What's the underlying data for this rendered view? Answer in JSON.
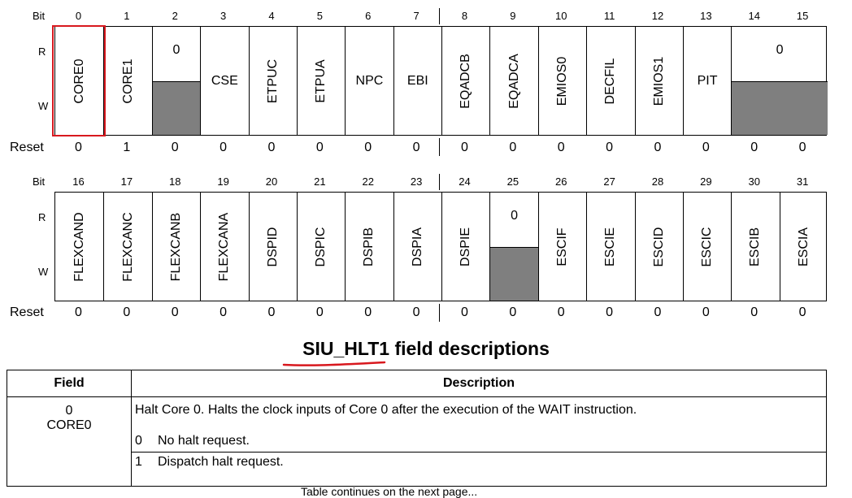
{
  "register": {
    "bit_label": "Bit",
    "r_label": "R",
    "w_label": "W",
    "reset_label": "Reset",
    "row1": {
      "bits": [
        "0",
        "1",
        "2",
        "3",
        "4",
        "5",
        "6",
        "7",
        "8",
        "9",
        "10",
        "11",
        "12",
        "13",
        "14",
        "15"
      ],
      "resets": [
        "0",
        "1",
        "0",
        "0",
        "0",
        "0",
        "0",
        "0",
        "0",
        "0",
        "0",
        "0",
        "0",
        "0",
        "0",
        "0"
      ],
      "fields": [
        {
          "name": "CORE0",
          "span": 1,
          "vertical": true,
          "reserved": false
        },
        {
          "name": "CORE1",
          "span": 1,
          "vertical": true,
          "reserved": false
        },
        {
          "name": "0",
          "span": 1,
          "vertical": false,
          "reserved": true
        },
        {
          "name": "CSE",
          "span": 1,
          "vertical": false,
          "reserved": false
        },
        {
          "name": "ETPUC",
          "span": 1,
          "vertical": true,
          "reserved": false
        },
        {
          "name": "ETPUA",
          "span": 1,
          "vertical": true,
          "reserved": false
        },
        {
          "name": "NPC",
          "span": 1,
          "vertical": false,
          "reserved": false
        },
        {
          "name": "EBI",
          "span": 1,
          "vertical": false,
          "reserved": false
        },
        {
          "name": "EQADCB",
          "span": 1,
          "vertical": true,
          "reserved": false
        },
        {
          "name": "EQADCA",
          "span": 1,
          "vertical": true,
          "reserved": false
        },
        {
          "name": "EMIOS0",
          "span": 1,
          "vertical": true,
          "reserved": false
        },
        {
          "name": "DECFIL",
          "span": 1,
          "vertical": true,
          "reserved": false
        },
        {
          "name": "EMIOS1",
          "span": 1,
          "vertical": true,
          "reserved": false
        },
        {
          "name": "PIT",
          "span": 1,
          "vertical": false,
          "reserved": false
        },
        {
          "name": "0",
          "span": 2,
          "vertical": false,
          "reserved": true
        }
      ]
    },
    "row2": {
      "bits": [
        "16",
        "17",
        "18",
        "19",
        "20",
        "21",
        "22",
        "23",
        "24",
        "25",
        "26",
        "27",
        "28",
        "29",
        "30",
        "31"
      ],
      "resets": [
        "0",
        "0",
        "0",
        "0",
        "0",
        "0",
        "0",
        "0",
        "0",
        "0",
        "0",
        "0",
        "0",
        "0",
        "0",
        "0"
      ],
      "fields": [
        {
          "name": "FLEXCAND",
          "span": 1,
          "vertical": true,
          "reserved": false
        },
        {
          "name": "FLEXCANC",
          "span": 1,
          "vertical": true,
          "reserved": false
        },
        {
          "name": "FLEXCANB",
          "span": 1,
          "vertical": true,
          "reserved": false
        },
        {
          "name": "FLEXCANA",
          "span": 1,
          "vertical": true,
          "reserved": false
        },
        {
          "name": "DSPID",
          "span": 1,
          "vertical": true,
          "reserved": false
        },
        {
          "name": "DSPIC",
          "span": 1,
          "vertical": true,
          "reserved": false
        },
        {
          "name": "DSPIB",
          "span": 1,
          "vertical": true,
          "reserved": false
        },
        {
          "name": "DSPIA",
          "span": 1,
          "vertical": true,
          "reserved": false
        },
        {
          "name": "DSPIE",
          "span": 1,
          "vertical": true,
          "reserved": false
        },
        {
          "name": "0",
          "span": 1,
          "vertical": false,
          "reserved": true
        },
        {
          "name": "ESCIF",
          "span": 1,
          "vertical": true,
          "reserved": false
        },
        {
          "name": "ESCIE",
          "span": 1,
          "vertical": true,
          "reserved": false
        },
        {
          "name": "ESCID",
          "span": 1,
          "vertical": true,
          "reserved": false
        },
        {
          "name": "ESCIC",
          "span": 1,
          "vertical": true,
          "reserved": false
        },
        {
          "name": "ESCIB",
          "span": 1,
          "vertical": true,
          "reserved": false
        },
        {
          "name": "ESCIA",
          "span": 1,
          "vertical": true,
          "reserved": false
        }
      ]
    }
  },
  "table": {
    "title": "SIU_HLT1 field descriptions",
    "headers": {
      "field": "Field",
      "description": "Description"
    },
    "rows": [
      {
        "field_bit": "0",
        "field_name": "CORE0",
        "description": "Halt Core 0. Halts the clock inputs of Core 0 after the execution of the WAIT instruction.",
        "values": [
          {
            "code": "0",
            "meaning": "No halt request."
          },
          {
            "code": "1",
            "meaning": "Dispatch halt request."
          }
        ]
      }
    ]
  },
  "colors": {
    "highlight": "#d8181e",
    "reserved_fill": "#7f7f7f"
  },
  "footer_partial": "Table continues on the next page..."
}
